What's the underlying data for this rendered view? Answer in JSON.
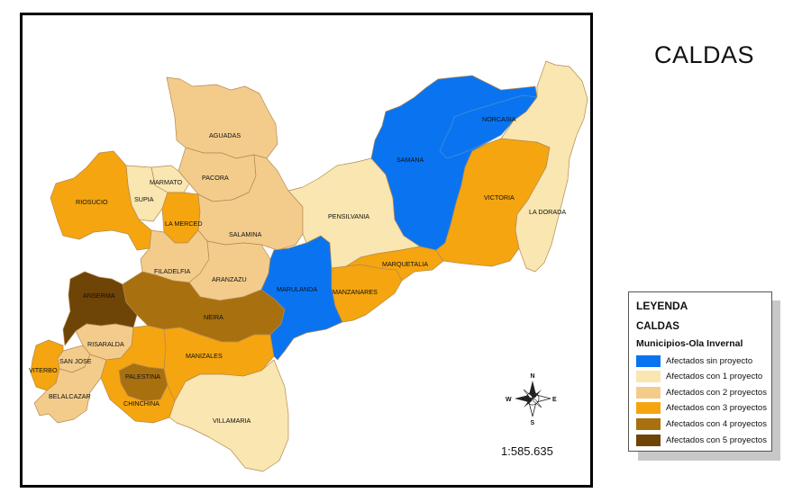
{
  "title": "CALDAS",
  "scale": "1:585.635",
  "compass": {
    "n": "N",
    "s": "S",
    "e": "E",
    "w": "W",
    "icon": "compass-rose-icon"
  },
  "legend": {
    "heading": "LEYENDA",
    "region": "CALDAS",
    "subtitle": "Municipios-Ola Invernal",
    "items": [
      {
        "label": "Afectados sin proyecto",
        "color": "#0a74f0"
      },
      {
        "label": "Afectados con 1 proyecto",
        "color": "#f9e6b0"
      },
      {
        "label": "Afectados con 2 proyectos",
        "color": "#f3cc8c"
      },
      {
        "label": "Afectados con 3 proyectos",
        "color": "#f5a50f"
      },
      {
        "label": "Afectados con 4 proyectos",
        "color": "#a8700f"
      },
      {
        "label": "Afectados con 5 proyectos",
        "color": "#6e4407"
      }
    ]
  },
  "municipalities": {
    "aguadas": "AGUADAS",
    "pacora": "PACORA",
    "marmato": "MARMATO",
    "supia": "SUPIA",
    "riosucio": "RIOSUCIO",
    "la_merced": "LA MERCED",
    "salamina": "SALAMINA",
    "filadelfia": "FILADELFIA",
    "aranzazu": "ARANZAZU",
    "anserma": "ANSERMA",
    "neira": "NEIRA",
    "risaralda": "RISARALDA",
    "san_jose": "SAN JOSE",
    "viterbo": "VITERBO",
    "belalcazar": "BELALCAZAR",
    "palestina": "PALESTINA",
    "chinchina": "CHINCHINA",
    "manizales": "MANIZALES",
    "villamaria": "VILLAMARIA",
    "marulanda": "MARULANDA",
    "manzanares": "MANZANARES",
    "marquetalia": "MARQUETALIA",
    "pensilvania": "PENSILVANIA",
    "samana": "SAMANA",
    "norcasia": "NORCASIA",
    "victoria": "VICTORIA",
    "la_dorada": "LA DORADA"
  }
}
